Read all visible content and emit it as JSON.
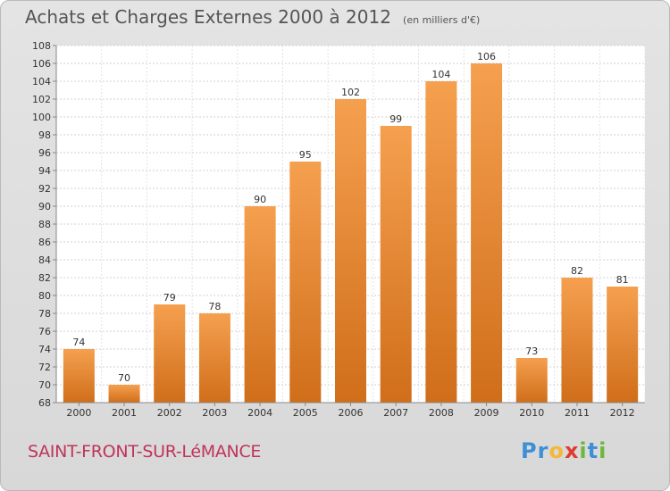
{
  "chart_data": {
    "type": "bar",
    "title": "Achats et Charges Externes 2000 à 2012",
    "subtitle": "(en milliers d'€)",
    "categories": [
      "2000",
      "2001",
      "2002",
      "2003",
      "2004",
      "2005",
      "2006",
      "2007",
      "2008",
      "2009",
      "2010",
      "2011",
      "2012"
    ],
    "values": [
      74,
      70,
      79,
      78,
      90,
      95,
      102,
      99,
      104,
      106,
      73,
      82,
      81
    ],
    "ylim": [
      68,
      108
    ],
    "yticks": [
      68,
      70,
      72,
      74,
      76,
      78,
      80,
      82,
      84,
      86,
      88,
      90,
      92,
      94,
      96,
      98,
      100,
      102,
      104,
      106,
      108
    ],
    "grid": true,
    "bar_color_top": "#f5a04f",
    "bar_color_bottom": "#d06e1a"
  },
  "commune": "SAINT-FRONT-SUR-LéMANCE",
  "logo": {
    "letters": [
      "P",
      "r",
      "o",
      "x",
      "i",
      "t",
      "i"
    ],
    "colors": [
      "#3d8fd6",
      "#3d8fd6",
      "#f3b83a",
      "#e03b2e",
      "#6bb83a",
      "#3d8fd6",
      "#6bb83a"
    ]
  }
}
